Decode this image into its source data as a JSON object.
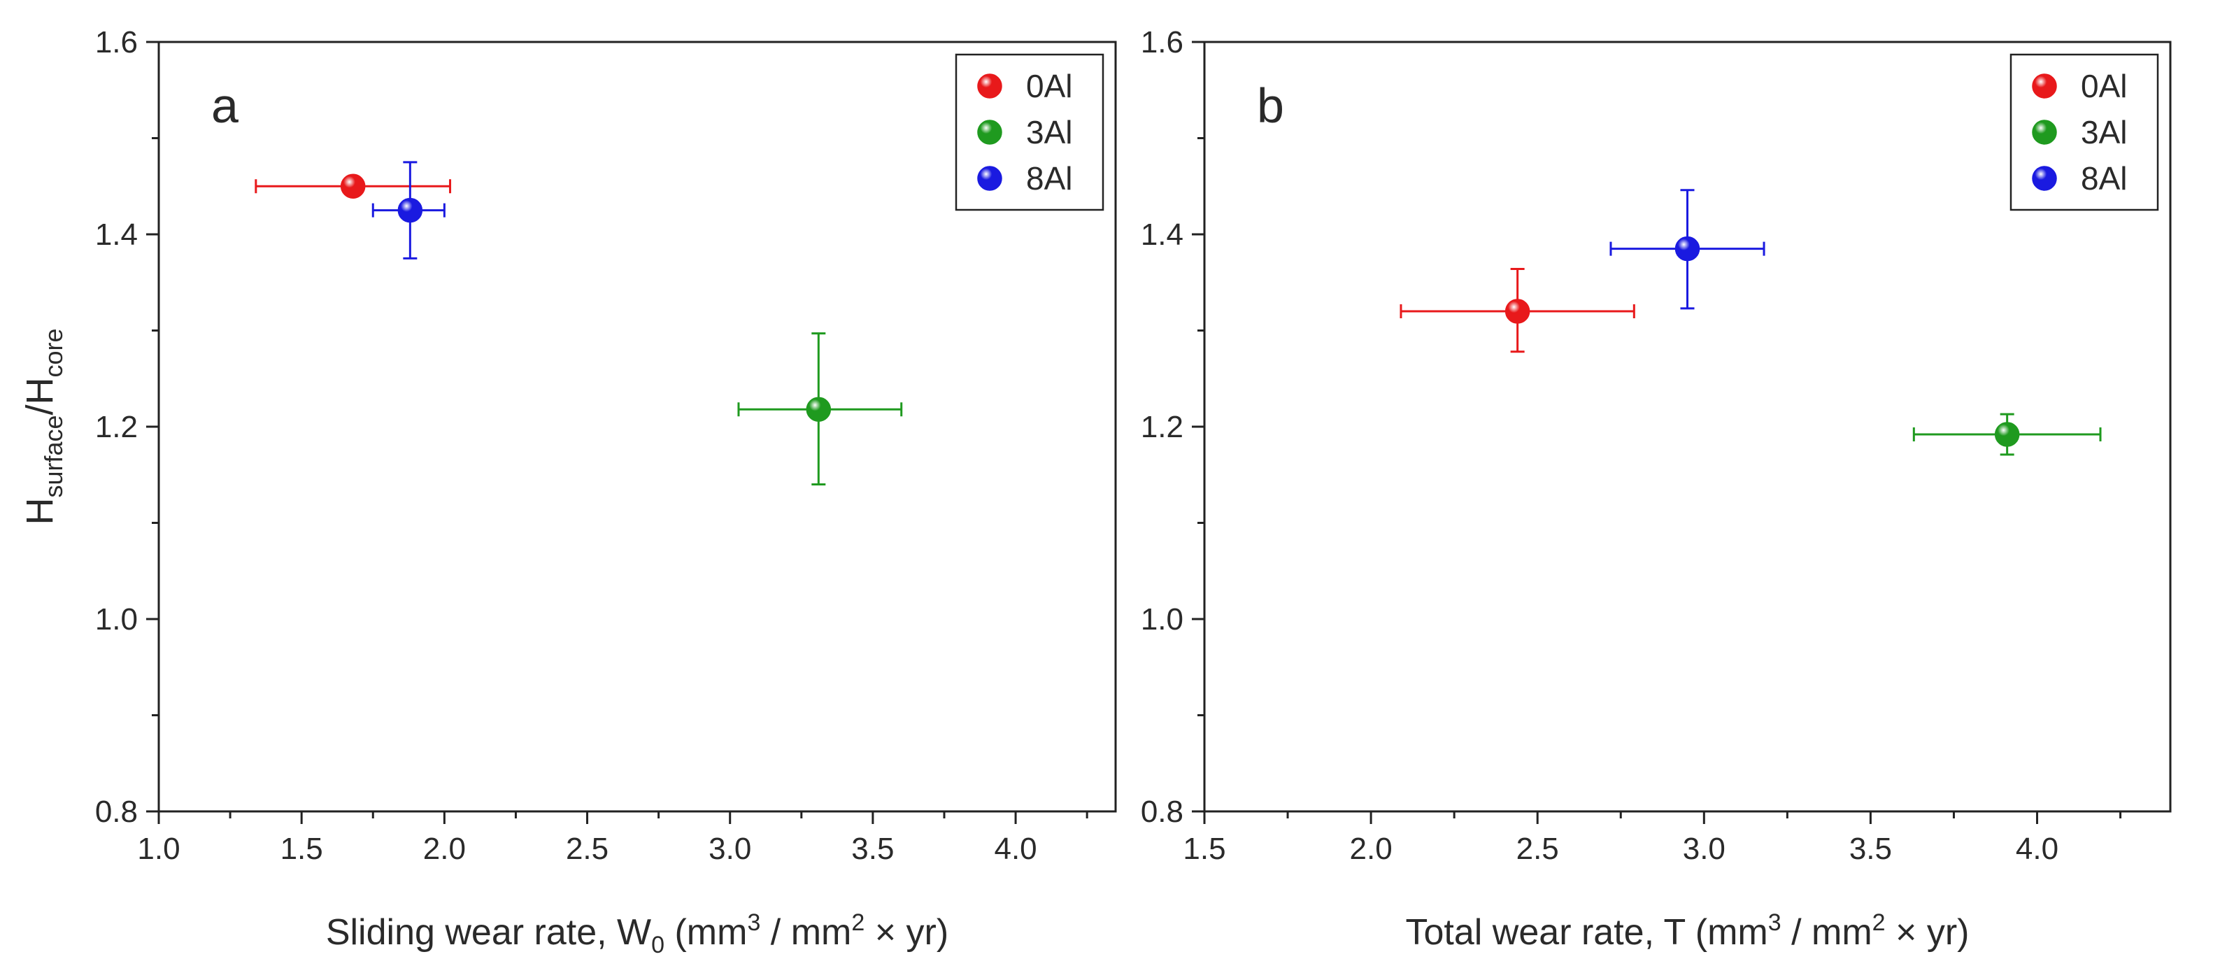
{
  "chart_data": [
    {
      "type": "scatter",
      "panel_label": "a",
      "xlabel_parts": {
        "main": "Sliding wear rate, W",
        "sub": "0",
        "open": " (mm",
        "sup1": "3",
        "mid": " / mm",
        "sup2": "2",
        "end": " × yr)"
      },
      "ylabel_parts": {
        "main": "H",
        "sub1": "surface",
        "slash": "/H",
        "sub2": "core"
      },
      "xlim": [
        1.0,
        4.35
      ],
      "ylim": [
        0.8,
        1.6
      ],
      "xticks": [
        1.0,
        1.5,
        2.0,
        2.5,
        3.0,
        3.5,
        4.0
      ],
      "xtick_labels": [
        "1.0",
        "1.5",
        "2.0",
        "2.5",
        "3.0",
        "3.5",
        "4.0"
      ],
      "yticks": [
        0.8,
        1.0,
        1.2,
        1.4,
        1.6
      ],
      "ytick_labels": [
        "0.8",
        "1.0",
        "1.2",
        "1.4",
        "1.6"
      ],
      "legend_position": "top-right",
      "series": [
        {
          "name": "0Al",
          "color": "#e8191b",
          "x": 1.68,
          "y": 1.45,
          "xerr": [
            1.34,
            2.02
          ],
          "yerr": [
            1.45,
            1.45
          ]
        },
        {
          "name": "3Al",
          "color": "#1f9a1f",
          "x": 3.31,
          "y": 1.218,
          "xerr": [
            3.03,
            3.6
          ],
          "yerr": [
            1.14,
            1.297
          ]
        },
        {
          "name": "8Al",
          "color": "#1a1ae0",
          "x": 1.88,
          "y": 1.425,
          "xerr": [
            1.75,
            2.0
          ],
          "yerr": [
            1.375,
            1.475
          ]
        }
      ]
    },
    {
      "type": "scatter",
      "panel_label": "b",
      "xlabel_parts": {
        "main": "Total wear rate, T",
        "sub": "",
        "open": " (mm",
        "sup1": "3",
        "mid": " / mm",
        "sup2": "2",
        "end": " × yr)"
      },
      "ylabel_parts": null,
      "xlim": [
        1.5,
        4.4
      ],
      "ylim": [
        0.8,
        1.6
      ],
      "xticks": [
        1.5,
        2.0,
        2.5,
        3.0,
        3.5,
        4.0
      ],
      "xtick_labels": [
        "1.5",
        "2.0",
        "2.5",
        "3.0",
        "3.5",
        "4.0"
      ],
      "yticks": [
        0.8,
        1.0,
        1.2,
        1.4,
        1.6
      ],
      "ytick_labels": [
        "0.8",
        "1.0",
        "1.2",
        "1.4",
        "1.6"
      ],
      "legend_position": "top-right",
      "series": [
        {
          "name": "0Al",
          "color": "#e8191b",
          "x": 2.44,
          "y": 1.32,
          "xerr": [
            2.09,
            2.79
          ],
          "yerr": [
            1.278,
            1.364
          ]
        },
        {
          "name": "3Al",
          "color": "#1f9a1f",
          "x": 3.91,
          "y": 1.192,
          "xerr": [
            3.63,
            4.19
          ],
          "yerr": [
            1.171,
            1.213
          ]
        },
        {
          "name": "8Al",
          "color": "#1a1ae0",
          "x": 2.95,
          "y": 1.385,
          "xerr": [
            2.72,
            3.18
          ],
          "yerr": [
            1.323,
            1.446
          ]
        }
      ]
    }
  ]
}
